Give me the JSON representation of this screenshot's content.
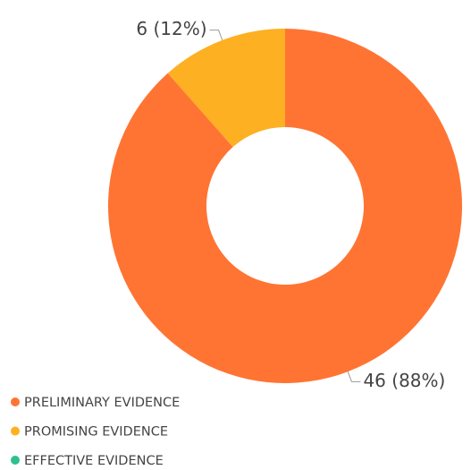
{
  "chart_data": {
    "type": "donut",
    "categories": [
      "PRELIMINARY EVIDENCE",
      "PROMISING EVIDENCE",
      "EFFECTIVE EVIDENCE"
    ],
    "values": [
      46,
      6,
      0
    ],
    "value_labels": [
      "46 (88%)",
      "6 (12%)",
      null
    ],
    "colors": [
      "#ff7433",
      "#fdb022",
      "#2ec08b"
    ]
  }
}
